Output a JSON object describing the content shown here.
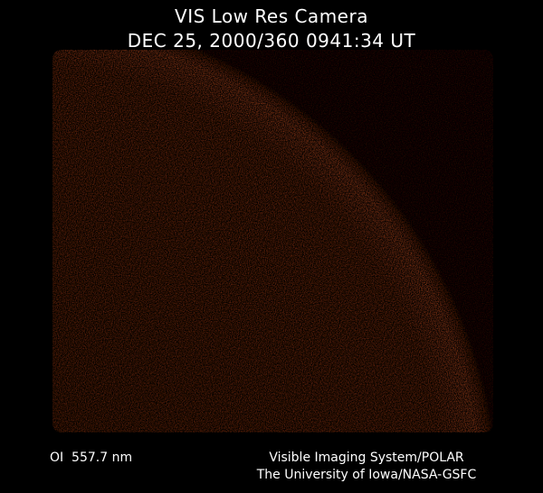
{
  "header": {
    "title": "VIS Low Res Camera",
    "timestamp": "DEC 25, 2000/360 0941:34 UT"
  },
  "footer": {
    "wavelength": "OI  557.7 nm",
    "instrument": "Visible Imaging System/POLAR",
    "credit": "The University of Iowa/NASA-GSFC"
  },
  "colors": {
    "background": "#000000",
    "disk": "#7a2a0c",
    "limb": "#b0461a"
  }
}
